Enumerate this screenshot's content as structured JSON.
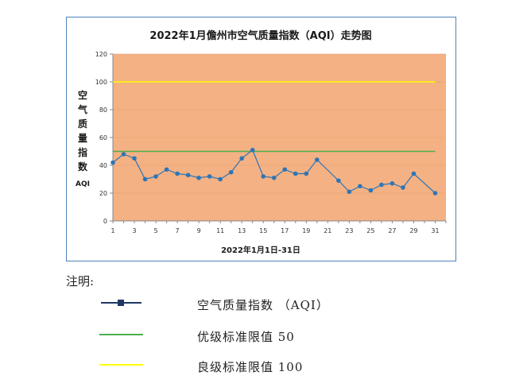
{
  "chart_data": {
    "type": "line",
    "title": "2022年1月儋州市空气质量指数（AQI）走势图",
    "xlabel": "2022年1月1日-31日",
    "ylabel_chars": [
      "空",
      "气",
      "质",
      "量",
      "指",
      "数"
    ],
    "ylabel_suffix": "AQI",
    "x": [
      1,
      2,
      3,
      4,
      5,
      6,
      7,
      8,
      9,
      10,
      11,
      12,
      13,
      14,
      15,
      16,
      17,
      18,
      19,
      20,
      22,
      23,
      24,
      25,
      26,
      27,
      28,
      29,
      31
    ],
    "series": [
      {
        "values": [
          42,
          48,
          45,
          30,
          32,
          37,
          34,
          33,
          31,
          32,
          30,
          35,
          45,
          51,
          32,
          31,
          37,
          34,
          34,
          44,
          29,
          21,
          25,
          22,
          26,
          27,
          24,
          34,
          20
        ],
        "color": "#2e75b6"
      }
    ],
    "reference_lines": [
      {
        "value": 50,
        "color": "#4caf50"
      },
      {
        "value": 100,
        "color": "#ffff00"
      }
    ],
    "xticks": [
      1,
      3,
      5,
      7,
      9,
      11,
      13,
      15,
      17,
      19,
      21,
      23,
      25,
      27,
      29,
      31
    ],
    "xlim": [
      1,
      32
    ],
    "yticks": [
      0,
      20,
      40,
      60,
      80,
      100,
      120
    ],
    "ylim": [
      0,
      120
    ],
    "plot_bg": "#f4b183",
    "grid": true
  },
  "legend": {
    "heading": "注明:",
    "items": [
      {
        "label": "空气质量指数 （AQI）",
        "color": "#1f3864",
        "kind": "marker-line"
      },
      {
        "label": "优级标准限值 50",
        "color": "#4caf50",
        "kind": "line"
      },
      {
        "label": "良级标准限值 100",
        "color": "#ffff00",
        "kind": "line"
      }
    ]
  }
}
